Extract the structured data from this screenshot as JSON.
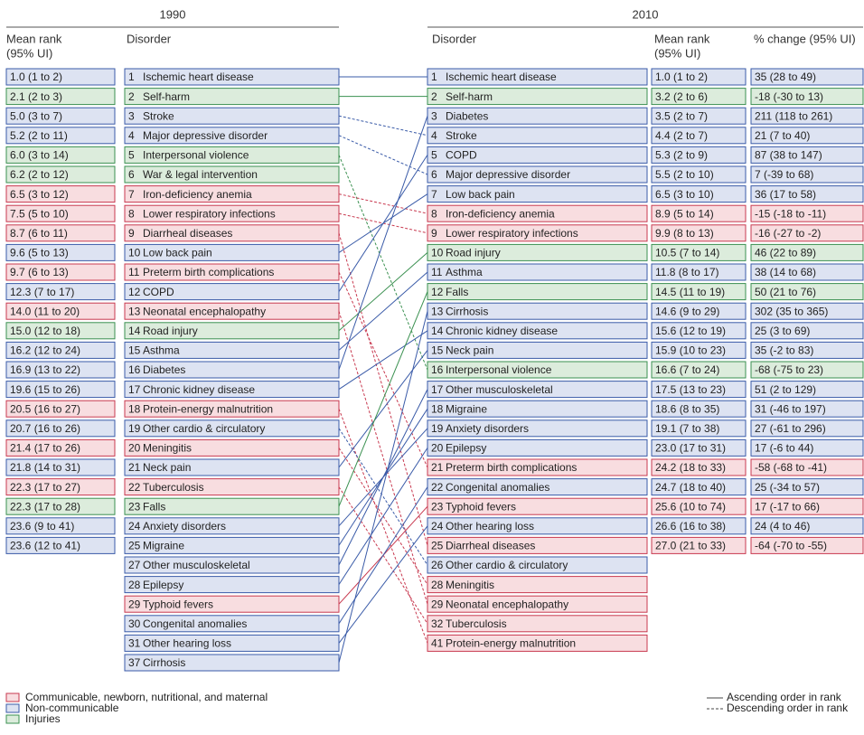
{
  "header": {
    "year_1990": "1990",
    "year_2010": "2010",
    "mean_rank": "Mean rank",
    "ui": "(95% UI)",
    "disorder": "Disorder",
    "change": "% change (95% UI)"
  },
  "groups": [
    {
      "name": "Communicable, newborn, nutritional, and maternal",
      "color": "#c8394f",
      "fill": "#f8dde0"
    },
    {
      "name": "Non-communicable",
      "color": "#3a5ba8",
      "fill": "#dde3f2"
    },
    {
      "name": "Injuries",
      "color": "#3a9050",
      "fill": "#dcecdc"
    }
  ],
  "line_styles": {
    "ascending": "Ascending order in rank",
    "descending": "Descending order in rank"
  },
  "rows_1990": [
    {
      "rank": 1,
      "name": "Ischemic heart disease",
      "group": 1,
      "mean_rank": "1.0 (1 to 2)"
    },
    {
      "rank": 2,
      "name": "Self-harm",
      "group": 2,
      "mean_rank": "2.1 (2 to 3)"
    },
    {
      "rank": 3,
      "name": "Stroke",
      "group": 1,
      "mean_rank": "5.0 (3 to 7)"
    },
    {
      "rank": 4,
      "name": "Major depressive disorder",
      "group": 1,
      "mean_rank": "5.2 (2 to 11)"
    },
    {
      "rank": 5,
      "name": "Interpersonal violence",
      "group": 2,
      "mean_rank": "6.0 (3 to 14)"
    },
    {
      "rank": 6,
      "name": "War & legal intervention",
      "group": 2,
      "mean_rank": "6.2 (2 to 12)"
    },
    {
      "rank": 7,
      "name": "Iron-deficiency anemia",
      "group": 0,
      "mean_rank": "6.5 (3 to 12)"
    },
    {
      "rank": 8,
      "name": "Lower respiratory infections",
      "group": 0,
      "mean_rank": "7.5 (5 to 10)"
    },
    {
      "rank": 9,
      "name": "Diarrheal diseases",
      "group": 0,
      "mean_rank": "8.7 (6 to 11)"
    },
    {
      "rank": 10,
      "name": "Low back pain",
      "group": 1,
      "mean_rank": "9.6 (5 to 13)"
    },
    {
      "rank": 11,
      "name": "Preterm birth complications",
      "group": 0,
      "mean_rank": "9.7 (6 to 13)"
    },
    {
      "rank": 12,
      "name": "COPD",
      "group": 1,
      "mean_rank": "12.3 (7 to 17)"
    },
    {
      "rank": 13,
      "name": "Neonatal encephalopathy",
      "group": 0,
      "mean_rank": "14.0 (11 to 20)"
    },
    {
      "rank": 14,
      "name": "Road injury",
      "group": 2,
      "mean_rank": "15.0 (12 to 18)"
    },
    {
      "rank": 15,
      "name": "Asthma",
      "group": 1,
      "mean_rank": "16.2 (12 to 24)"
    },
    {
      "rank": 16,
      "name": "Diabetes",
      "group": 1,
      "mean_rank": "16.9 (13 to 22)"
    },
    {
      "rank": 17,
      "name": "Chronic kidney disease",
      "group": 1,
      "mean_rank": "19.6 (15 to 26)"
    },
    {
      "rank": 18,
      "name": "Protein-energy malnutrition",
      "group": 0,
      "mean_rank": "20.5 (16 to 27)"
    },
    {
      "rank": 19,
      "name": "Other cardio & circulatory",
      "group": 1,
      "mean_rank": "20.7 (16 to 26)"
    },
    {
      "rank": 20,
      "name": "Meningitis",
      "group": 0,
      "mean_rank": "21.4 (17 to 26)"
    },
    {
      "rank": 21,
      "name": "Neck pain",
      "group": 1,
      "mean_rank": "21.8 (14 to 31)"
    },
    {
      "rank": 22,
      "name": "Tuberculosis",
      "group": 0,
      "mean_rank": "22.3 (17 to 27)"
    },
    {
      "rank": 23,
      "name": "Falls",
      "group": 2,
      "mean_rank": "22.3 (17 to 28)"
    },
    {
      "rank": 24,
      "name": "Anxiety disorders",
      "group": 1,
      "mean_rank": "23.6 (9 to 41)"
    },
    {
      "rank": 25,
      "name": "Migraine",
      "group": 1,
      "mean_rank": "23.6 (12 to 41)"
    },
    {
      "rank": 27,
      "name": "Other musculoskeletal",
      "group": 1
    },
    {
      "rank": 28,
      "name": "Epilepsy",
      "group": 1
    },
    {
      "rank": 29,
      "name": "Typhoid fevers",
      "group": 0
    },
    {
      "rank": 30,
      "name": "Congenital anomalies",
      "group": 1
    },
    {
      "rank": 31,
      "name": "Other hearing loss",
      "group": 1
    },
    {
      "rank": 37,
      "name": "Cirrhosis",
      "group": 1
    }
  ],
  "rows_2010": [
    {
      "rank": 1,
      "name": "Ischemic heart disease",
      "group": 1,
      "mean_rank": "1.0 (1 to 2)",
      "change": "35 (28 to 49)"
    },
    {
      "rank": 2,
      "name": "Self-harm",
      "group": 2,
      "mean_rank": "3.2 (2 to 6)",
      "change": "-18 (-30 to 13)"
    },
    {
      "rank": 3,
      "name": "Diabetes",
      "group": 1,
      "mean_rank": "3.5 (2 to 7)",
      "change": "211 (118 to 261)"
    },
    {
      "rank": 4,
      "name": "Stroke",
      "group": 1,
      "mean_rank": "4.4 (2 to 7)",
      "change": "21 (7 to 40)"
    },
    {
      "rank": 5,
      "name": "COPD",
      "group": 1,
      "mean_rank": "5.3 (2 to 9)",
      "change": "87 (38 to 147)"
    },
    {
      "rank": 6,
      "name": "Major depressive disorder",
      "group": 1,
      "mean_rank": "5.5 (2 to 10)",
      "change": "7 (-39 to 68)"
    },
    {
      "rank": 7,
      "name": "Low back pain",
      "group": 1,
      "mean_rank": "6.5 (3 to 10)",
      "change": "36 (17 to 58)"
    },
    {
      "rank": 8,
      "name": "Iron-deficiency anemia",
      "group": 0,
      "mean_rank": "8.9 (5 to 14)",
      "change": "-15 (-18 to -11)"
    },
    {
      "rank": 9,
      "name": "Lower respiratory infections",
      "group": 0,
      "mean_rank": "9.9 (8 to 13)",
      "change": "-16 (-27 to -2)"
    },
    {
      "rank": 10,
      "name": "Road injury",
      "group": 2,
      "mean_rank": "10.5 (7 to 14)",
      "change": "46 (22 to 89)"
    },
    {
      "rank": 11,
      "name": "Asthma",
      "group": 1,
      "mean_rank": "11.8 (8 to 17)",
      "change": "38 (14 to 68)"
    },
    {
      "rank": 12,
      "name": "Falls",
      "group": 2,
      "mean_rank": "14.5 (11 to 19)",
      "change": "50 (21 to 76)"
    },
    {
      "rank": 13,
      "name": "Cirrhosis",
      "group": 1,
      "mean_rank": "14.6 (9 to 29)",
      "change": "302 (35 to 365)"
    },
    {
      "rank": 14,
      "name": "Chronic kidney disease",
      "group": 1,
      "mean_rank": "15.6 (12 to 19)",
      "change": "25 (3 to 69)"
    },
    {
      "rank": 15,
      "name": "Neck pain",
      "group": 1,
      "mean_rank": "15.9 (10 to 23)",
      "change": "35 (-2 to 83)"
    },
    {
      "rank": 16,
      "name": "Interpersonal violence",
      "group": 2,
      "mean_rank": "16.6 (7 to 24)",
      "change": "-68 (-75 to 23)"
    },
    {
      "rank": 17,
      "name": "Other musculoskeletal",
      "group": 1,
      "mean_rank": "17.5 (13 to 23)",
      "change": "51 (2 to 129)"
    },
    {
      "rank": 18,
      "name": "Migraine",
      "group": 1,
      "mean_rank": "18.6 (8 to 35)",
      "change": "31 (-46 to 197)"
    },
    {
      "rank": 19,
      "name": "Anxiety disorders",
      "group": 1,
      "mean_rank": "19.1 (7 to 38)",
      "change": "27 (-61 to 296)"
    },
    {
      "rank": 20,
      "name": "Epilepsy",
      "group": 1,
      "mean_rank": "23.0 (17 to 31)",
      "change": "17 (-6 to 44)"
    },
    {
      "rank": 21,
      "name": "Preterm birth complications",
      "group": 0,
      "mean_rank": "24.2 (18 to 33)",
      "change": "-58 (-68 to -41)"
    },
    {
      "rank": 22,
      "name": "Congenital anomalies",
      "group": 1,
      "mean_rank": "24.7 (18 to 40)",
      "change": "25 (-34 to 57)"
    },
    {
      "rank": 23,
      "name": "Typhoid fevers",
      "group": 0,
      "mean_rank": "25.6 (10 to 74)",
      "change": "17 (-17 to 66)"
    },
    {
      "rank": 24,
      "name": "Other hearing loss",
      "group": 1,
      "mean_rank": "26.6 (16 to 38)",
      "change": "24 (4 to 46)"
    },
    {
      "rank": 25,
      "name": "Diarrheal diseases",
      "group": 0,
      "mean_rank": "27.0 (21 to 33)",
      "change": "-64 (-70 to -55)"
    },
    {
      "rank": 26,
      "name": "Other cardio & circulatory",
      "group": 1
    },
    {
      "rank": 28,
      "name": "Meningitis",
      "group": 0
    },
    {
      "rank": 29,
      "name": "Neonatal encephalopathy",
      "group": 0
    },
    {
      "rank": 32,
      "name": "Tuberculosis",
      "group": 0
    },
    {
      "rank": 41,
      "name": "Protein-energy malnutrition",
      "group": 0
    }
  ]
}
